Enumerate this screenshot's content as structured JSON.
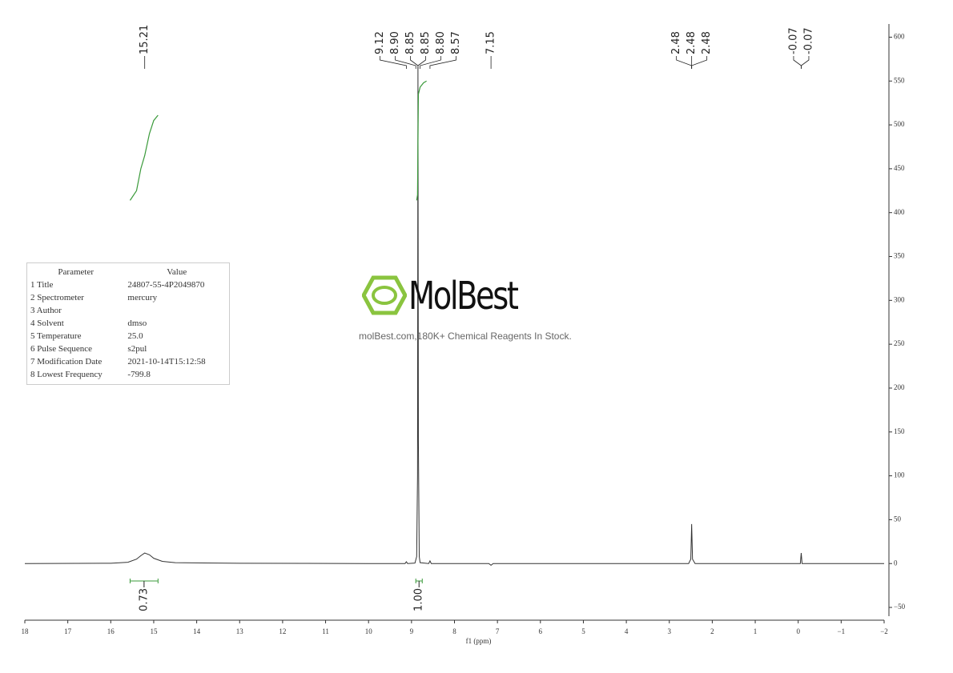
{
  "chart_data": {
    "type": "line",
    "x_label": "f1 (ppm)",
    "xlim": [
      18,
      -2
    ],
    "xticks": [
      18,
      17,
      16,
      15,
      14,
      13,
      12,
      11,
      10,
      9,
      8,
      7,
      6,
      5,
      4,
      3,
      2,
      1,
      0,
      {
        "value": -1,
        "label": "−1"
      },
      {
        "value": -2,
        "label": "−2"
      }
    ],
    "ylim": [
      -60,
      615
    ],
    "yticks": [
      {
        "value": -50,
        "label": "−50"
      },
      0,
      50,
      100,
      150,
      200,
      250,
      300,
      350,
      400,
      450,
      500,
      550,
      600
    ],
    "spectrum": {
      "color": "#333333",
      "x": [
        18,
        16,
        15.6,
        15.4,
        15.3,
        15.21,
        15.1,
        15.0,
        14.8,
        14.5,
        13,
        10,
        9.15,
        9.12,
        9.09,
        8.92,
        8.88,
        8.86,
        8.85,
        8.84,
        8.82,
        8.8,
        8.6,
        8.57,
        8.54,
        7.2,
        7.15,
        7.1,
        2.55,
        2.5,
        2.48,
        2.46,
        2.4,
        0,
        -0.05,
        -0.07,
        -0.09,
        -2
      ],
      "values": [
        0,
        0.3,
        1.5,
        5,
        9,
        12,
        10,
        6,
        2.5,
        1,
        0.3,
        0,
        0,
        2,
        0,
        0.5,
        8,
        100,
        566,
        140,
        8,
        1,
        0,
        3,
        0,
        0,
        -2,
        0,
        0,
        5,
        45,
        5,
        0,
        0,
        0,
        12,
        0,
        0
      ]
    },
    "integral_curves": [
      {
        "color": "#3a9a3a",
        "x": [
          15.55,
          15.4,
          15.3,
          15.21,
          15.1,
          15.0,
          14.9
        ],
        "values": [
          414,
          425,
          450,
          465,
          490,
          505,
          511
        ]
      },
      {
        "color": "#3a9a3a",
        "x": [
          8.88,
          8.86,
          8.85,
          8.84,
          8.8,
          8.72,
          8.65
        ],
        "values": [
          414,
          420,
          480,
          535,
          543,
          548,
          550
        ]
      }
    ],
    "integrals": [
      {
        "from": 15.55,
        "to": 14.9,
        "value": 0.73
      },
      {
        "from": 8.9,
        "to": 8.75,
        "value": {
          "value": 1,
          "label": "1.00"
        }
      }
    ],
    "peaks": [
      15.21,
      9.12,
      {
        "value": 8.9,
        "label": "8.90"
      },
      8.85,
      8.85,
      {
        "value": 8.8,
        "label": "8.80"
      },
      8.57,
      7.15,
      2.48,
      2.48,
      2.48,
      -0.07,
      -0.07
    ]
  },
  "parameters": {
    "header": [
      "Parameter",
      "Value"
    ],
    "rows": [
      [
        "1 Title",
        "24807-55-4P2049870"
      ],
      [
        "2 Spectrometer",
        "mercury"
      ],
      [
        "3 Author"
      ],
      [
        "4 Solvent",
        "dmso"
      ],
      [
        "5 Temperature",
        "25.0"
      ],
      [
        "6 Pulse Sequence",
        "s2pul"
      ],
      [
        "7 Modification Date",
        "2021-10-14T15:12:58"
      ],
      [
        "8 Lowest Frequency",
        "-799.8"
      ]
    ]
  },
  "watermark": {
    "brand": "MolBest",
    "tagline": "molBest.com,180K+ Chemical Reagents In Stock."
  }
}
